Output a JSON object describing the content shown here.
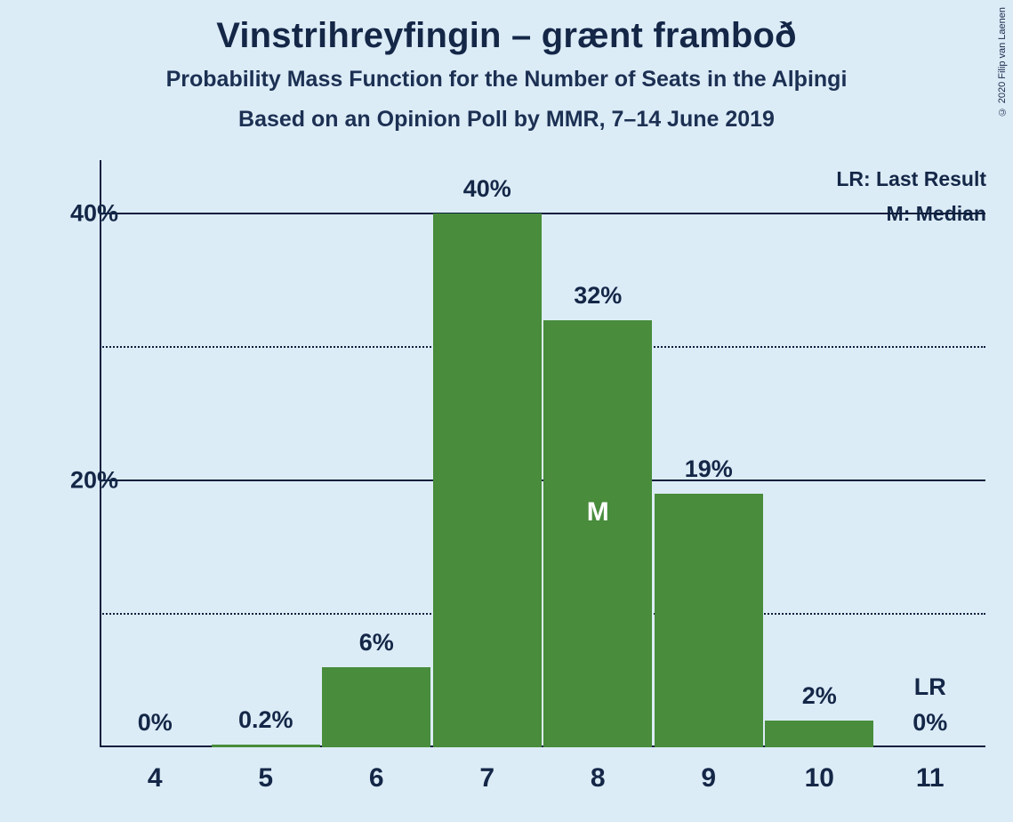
{
  "meta": {
    "copyright": "© 2020 Filip van Laenen"
  },
  "titles": {
    "main": "Vinstrihreyfingin – grænt framboð",
    "sub1": "Probability Mass Function for the Number of Seats in the Alþingi",
    "sub2": "Based on an Opinion Poll by MMR, 7–14 June 2019"
  },
  "legend": {
    "lr": "LR: Last Result",
    "m": "M: Median"
  },
  "chart": {
    "type": "bar",
    "background_color": "#dcecf7",
    "bar_color": "#488c3c",
    "axis_color": "#0b1e3d",
    "text_color": "#142747",
    "categories": [
      "4",
      "5",
      "6",
      "7",
      "8",
      "9",
      "10",
      "11"
    ],
    "values": [
      0,
      0.2,
      6,
      40,
      32,
      19,
      2,
      0
    ],
    "value_labels": [
      "0%",
      "0.2%",
      "6%",
      "40%",
      "32%",
      "19%",
      "2%",
      "0%"
    ],
    "median_index": 4,
    "median_marker": "M",
    "last_result_index": 7,
    "last_result_marker": "LR",
    "y_max": 44,
    "y_major_ticks": [
      20,
      40
    ],
    "y_minor_ticks": [
      10,
      30
    ],
    "y_tick_labels": {
      "20": "20%",
      "40": "40%"
    },
    "bar_width_ratio": 0.98,
    "title_fontsize": 40,
    "subtitle_fontsize": 25,
    "label_fontsize": 27,
    "xtick_fontsize": 30
  }
}
